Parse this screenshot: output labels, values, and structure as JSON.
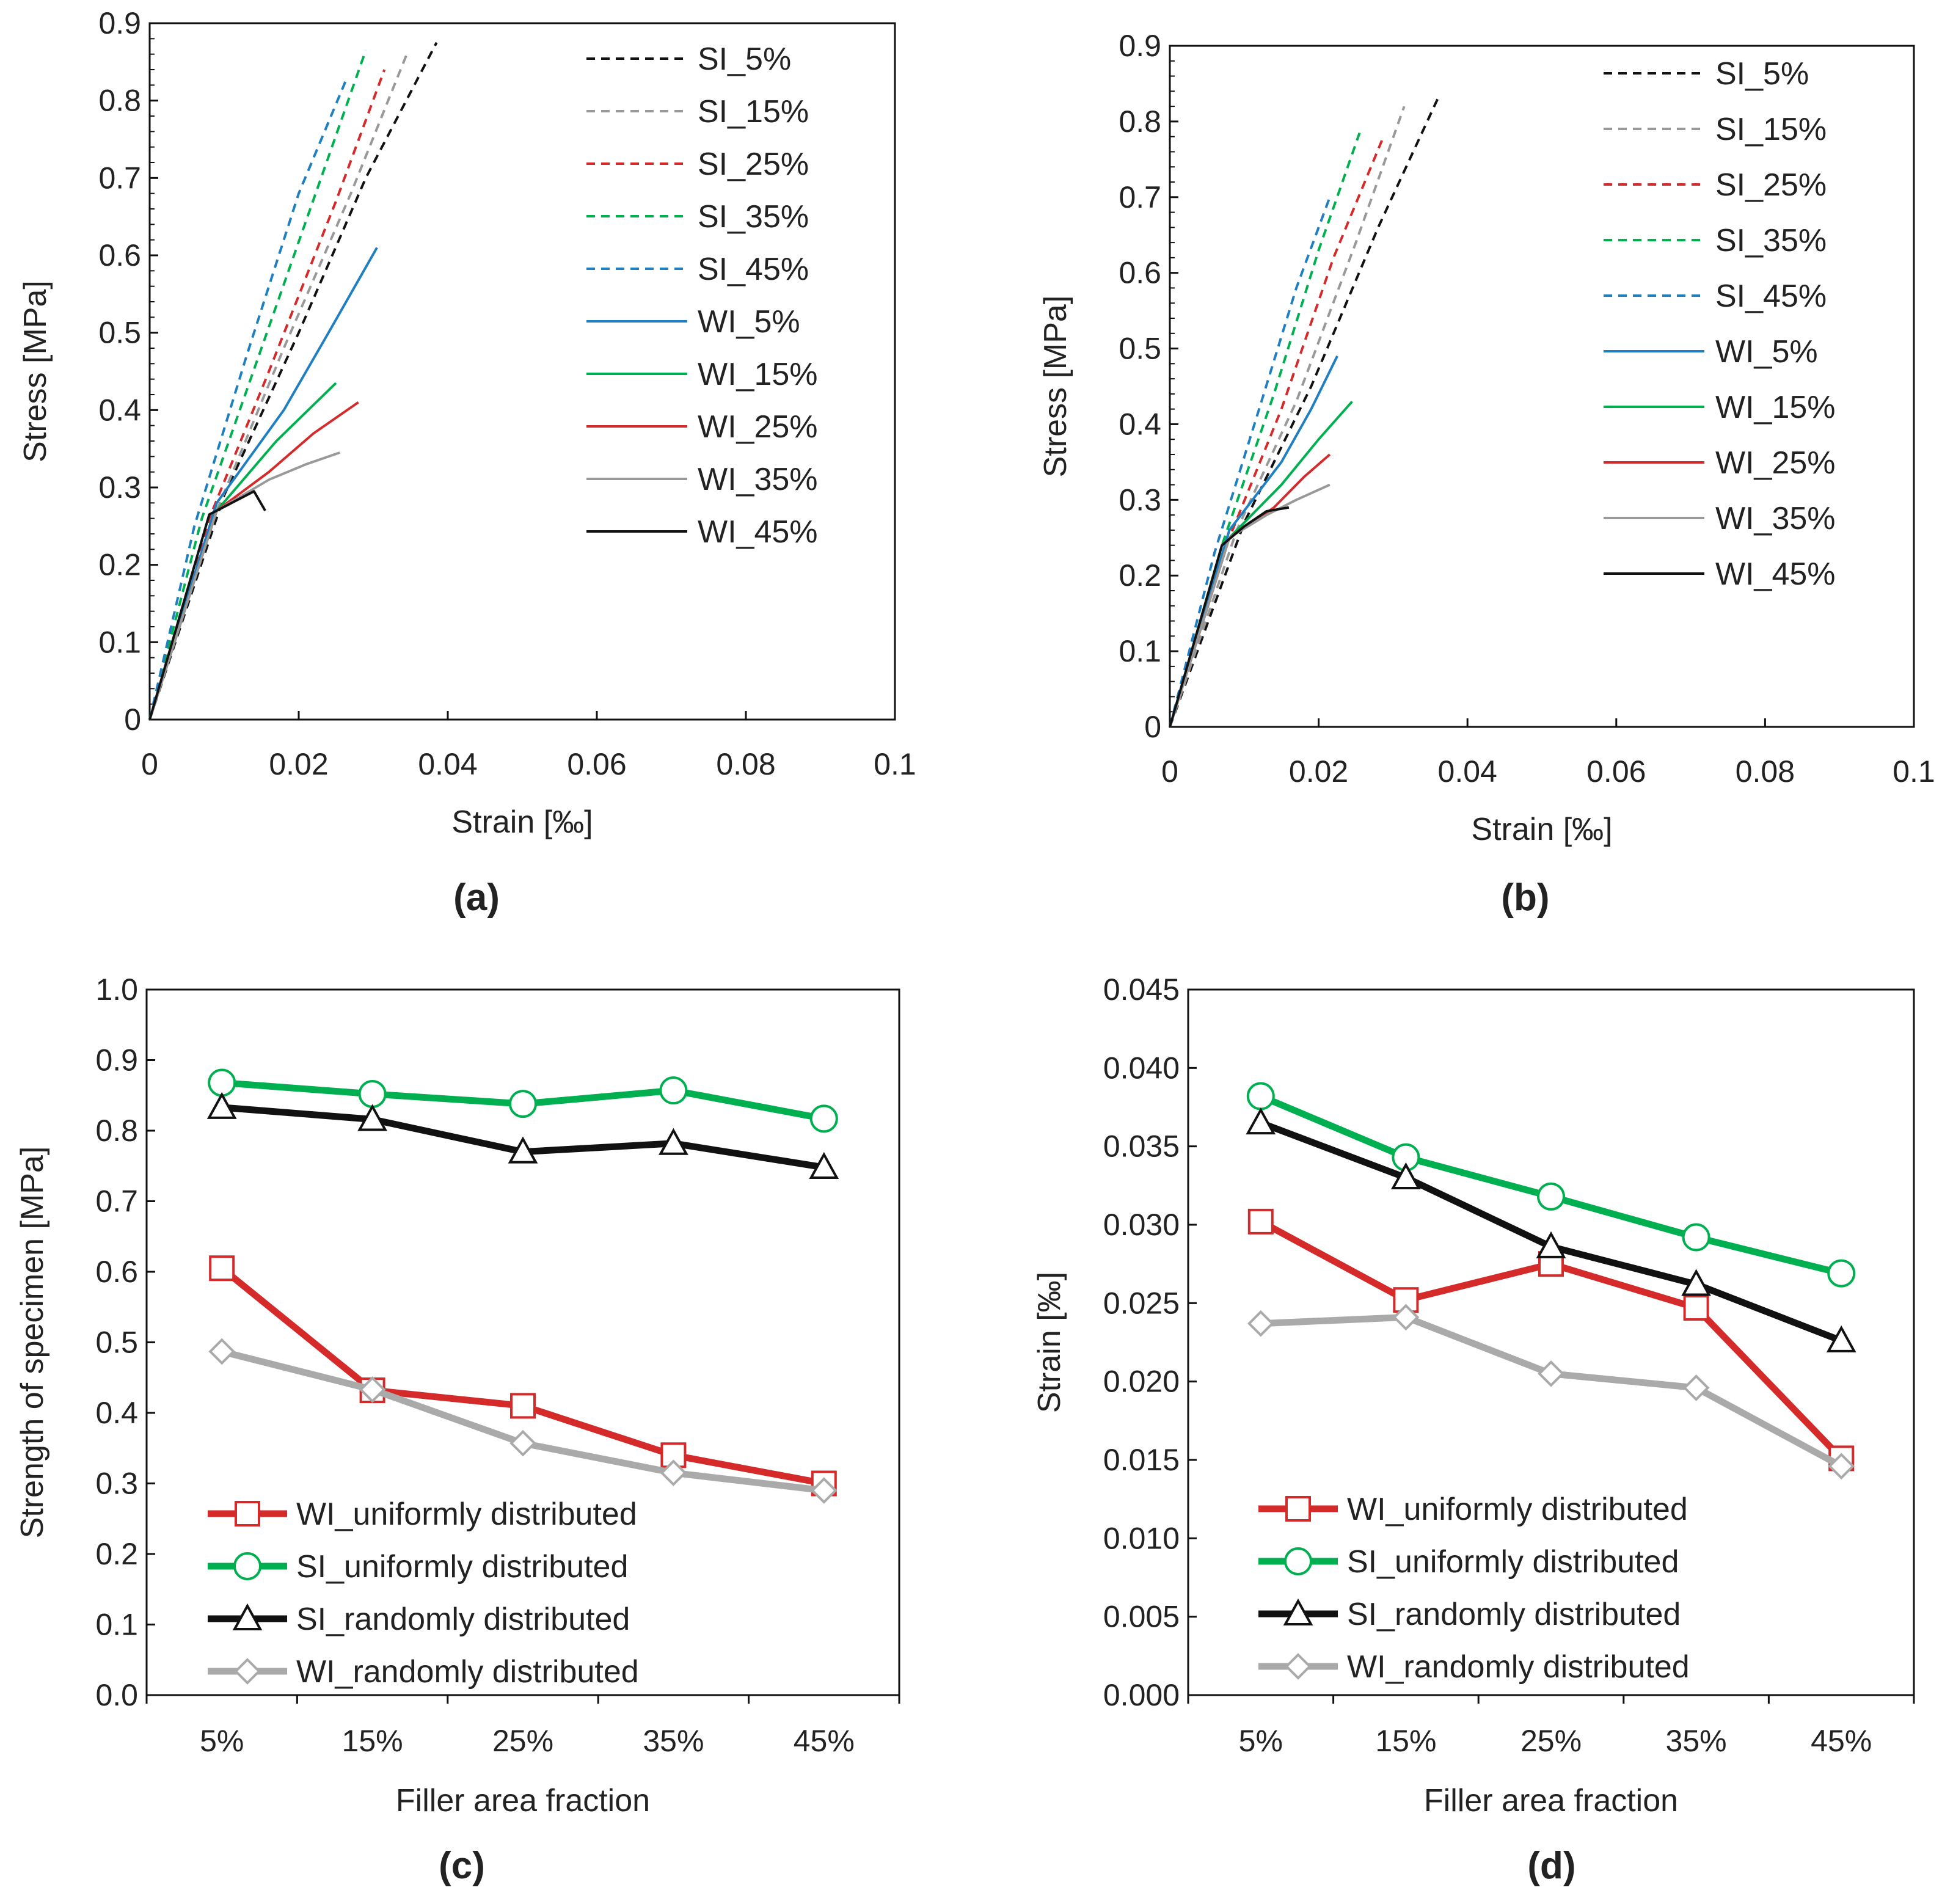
{
  "figure": {
    "panels": [
      "(a)",
      "(b)",
      "(c)",
      "(d)"
    ]
  },
  "chart_data": [
    {
      "id": "a",
      "type": "line",
      "panel_label": "(a)",
      "xlabel": "Strain [‰]",
      "ylabel": "Stress [MPa]",
      "xlim": [
        0,
        0.1
      ],
      "ylim": [
        0,
        0.9
      ],
      "xticks": [
        "0",
        "0.02",
        "0.04",
        "0.06",
        "0.08",
        "0.1"
      ],
      "yticks": [
        "0",
        "0.1",
        "0.2",
        "0.3",
        "0.4",
        "0.5",
        "0.6",
        "0.7",
        "0.8",
        "0.9"
      ],
      "legend_position": "top-right",
      "series": [
        {
          "name": "SI_5%",
          "color": "#111111",
          "dash": true,
          "points": [
            [
              0,
              0
            ],
            [
              0.01,
              0.29
            ],
            [
              0.02,
              0.5
            ],
            [
              0.029,
              0.7
            ],
            [
              0.0385,
              0.875
            ]
          ]
        },
        {
          "name": "SI_15%",
          "color": "#999999",
          "dash": true,
          "points": [
            [
              0,
              0
            ],
            [
              0.009,
              0.27
            ],
            [
              0.018,
              0.48
            ],
            [
              0.027,
              0.68
            ],
            [
              0.0345,
              0.86
            ]
          ]
        },
        {
          "name": "SI_25%",
          "color": "#d42a2a",
          "dash": true,
          "points": [
            [
              0,
              0
            ],
            [
              0.008,
              0.26
            ],
            [
              0.016,
              0.45
            ],
            [
              0.025,
              0.67
            ],
            [
              0.0315,
              0.84
            ]
          ]
        },
        {
          "name": "SI_35%",
          "color": "#00b050",
          "dash": true,
          "points": [
            [
              0,
              0
            ],
            [
              0.007,
              0.26
            ],
            [
              0.015,
              0.48
            ],
            [
              0.023,
              0.7
            ],
            [
              0.029,
              0.865
            ]
          ]
        },
        {
          "name": "SI_45%",
          "color": "#1f7fc0",
          "dash": true,
          "points": [
            [
              0,
              0
            ],
            [
              0.006,
              0.25
            ],
            [
              0.013,
              0.47
            ],
            [
              0.02,
              0.68
            ],
            [
              0.0265,
              0.83
            ]
          ]
        },
        {
          "name": "WI_5%",
          "color": "#1f7fc0",
          "dash": false,
          "points": [
            [
              0,
              0
            ],
            [
              0.009,
              0.28
            ],
            [
              0.018,
              0.4
            ],
            [
              0.024,
              0.5
            ],
            [
              0.0305,
              0.61
            ]
          ]
        },
        {
          "name": "WI_15%",
          "color": "#00b050",
          "dash": false,
          "points": [
            [
              0,
              0
            ],
            [
              0.009,
              0.27
            ],
            [
              0.017,
              0.36
            ],
            [
              0.025,
              0.435
            ]
          ]
        },
        {
          "name": "WI_25%",
          "color": "#d42a2a",
          "dash": false,
          "points": [
            [
              0,
              0
            ],
            [
              0.009,
              0.27
            ],
            [
              0.016,
              0.32
            ],
            [
              0.022,
              0.37
            ],
            [
              0.028,
              0.41
            ]
          ]
        },
        {
          "name": "WI_35%",
          "color": "#999999",
          "dash": false,
          "points": [
            [
              0,
              0
            ],
            [
              0.009,
              0.27
            ],
            [
              0.016,
              0.31
            ],
            [
              0.021,
              0.33
            ],
            [
              0.0255,
              0.345
            ]
          ]
        },
        {
          "name": "WI_45%",
          "color": "#111111",
          "dash": false,
          "points": [
            [
              0,
              0
            ],
            [
              0.008,
              0.265
            ],
            [
              0.011,
              0.28
            ],
            [
              0.014,
              0.295
            ],
            [
              0.0155,
              0.27
            ]
          ]
        }
      ]
    },
    {
      "id": "b",
      "type": "line",
      "panel_label": "(b)",
      "xlabel": "Strain [‰]",
      "ylabel": "Stress [MPa]",
      "xlim": [
        0,
        0.1
      ],
      "ylim": [
        0,
        0.9
      ],
      "xticks": [
        "0",
        "0.02",
        "0.04",
        "0.06",
        "0.08",
        "0.1"
      ],
      "yticks": [
        "0",
        "0.1",
        "0.2",
        "0.3",
        "0.4",
        "0.5",
        "0.6",
        "0.7",
        "0.8",
        "0.9"
      ],
      "legend_position": "top-right",
      "series": [
        {
          "name": "SI_5%",
          "color": "#111111",
          "dash": true,
          "points": [
            [
              0,
              0
            ],
            [
              0.01,
              0.27
            ],
            [
              0.019,
              0.45
            ],
            [
              0.028,
              0.66
            ],
            [
              0.036,
              0.83
            ]
          ]
        },
        {
          "name": "SI_15%",
          "color": "#999999",
          "dash": true,
          "points": [
            [
              0,
              0
            ],
            [
              0.009,
              0.26
            ],
            [
              0.017,
              0.43
            ],
            [
              0.025,
              0.64
            ],
            [
              0.0315,
              0.82
            ]
          ]
        },
        {
          "name": "SI_25%",
          "color": "#d42a2a",
          "dash": true,
          "points": [
            [
              0,
              0
            ],
            [
              0.008,
              0.25
            ],
            [
              0.015,
              0.42
            ],
            [
              0.022,
              0.62
            ],
            [
              0.0285,
              0.775
            ]
          ]
        },
        {
          "name": "SI_35%",
          "color": "#00b050",
          "dash": true,
          "points": [
            [
              0,
              0
            ],
            [
              0.007,
              0.24
            ],
            [
              0.014,
              0.44
            ],
            [
              0.02,
              0.63
            ],
            [
              0.0255,
              0.785
            ]
          ]
        },
        {
          "name": "SI_45%",
          "color": "#1f7fc0",
          "dash": true,
          "points": [
            [
              0,
              0
            ],
            [
              0.006,
              0.23
            ],
            [
              0.012,
              0.42
            ],
            [
              0.017,
              0.58
            ],
            [
              0.0215,
              0.7
            ]
          ]
        },
        {
          "name": "WI_5%",
          "color": "#1f7fc0",
          "dash": false,
          "points": [
            [
              0,
              0
            ],
            [
              0.008,
              0.26
            ],
            [
              0.015,
              0.35
            ],
            [
              0.019,
              0.42
            ],
            [
              0.0225,
              0.49
            ]
          ]
        },
        {
          "name": "WI_15%",
          "color": "#00b050",
          "dash": false,
          "points": [
            [
              0,
              0
            ],
            [
              0.008,
              0.25
            ],
            [
              0.015,
              0.32
            ],
            [
              0.02,
              0.38
            ],
            [
              0.0245,
              0.43
            ]
          ]
        },
        {
          "name": "WI_25%",
          "color": "#d42a2a",
          "dash": false,
          "points": [
            [
              0,
              0
            ],
            [
              0.008,
              0.25
            ],
            [
              0.014,
              0.29
            ],
            [
              0.018,
              0.33
            ],
            [
              0.0215,
              0.36
            ]
          ]
        },
        {
          "name": "WI_35%",
          "color": "#999999",
          "dash": false,
          "points": [
            [
              0,
              0
            ],
            [
              0.008,
              0.25
            ],
            [
              0.013,
              0.28
            ],
            [
              0.017,
              0.3
            ],
            [
              0.0215,
              0.32
            ]
          ]
        },
        {
          "name": "WI_45%",
          "color": "#111111",
          "dash": false,
          "points": [
            [
              0,
              0
            ],
            [
              0.007,
              0.24
            ],
            [
              0.01,
              0.265
            ],
            [
              0.013,
              0.285
            ],
            [
              0.016,
              0.29
            ]
          ]
        }
      ]
    },
    {
      "id": "c",
      "type": "line",
      "panel_label": "(c)",
      "xlabel": "Filler area fraction",
      "ylabel": "Strength of specimen [MPa]",
      "categories": [
        "5%",
        "15%",
        "25%",
        "35%",
        "45%"
      ],
      "ylim": [
        0,
        1.0
      ],
      "yticks": [
        "0.0",
        "0.1",
        "0.2",
        "0.3",
        "0.4",
        "0.5",
        "0.6",
        "0.7",
        "0.8",
        "0.9",
        "1.0"
      ],
      "legend_position": "bottom-left",
      "series": [
        {
          "name": "WI_uniformly distributed",
          "color": "#d42a2a",
          "marker": "square",
          "values": [
            0.605,
            0.432,
            0.41,
            0.34,
            0.3
          ]
        },
        {
          "name": "SI_uniformly distributed",
          "color": "#00b050",
          "marker": "circle",
          "values": [
            0.868,
            0.852,
            0.838,
            0.857,
            0.817
          ]
        },
        {
          "name": "SI_randomly distributed",
          "color": "#111111",
          "marker": "triangle",
          "values": [
            0.833,
            0.816,
            0.77,
            0.782,
            0.748
          ]
        },
        {
          "name": "WI_randomly distributed",
          "color": "#aaaaaa",
          "marker": "diamond",
          "values": [
            0.487,
            0.433,
            0.357,
            0.315,
            0.29
          ]
        }
      ]
    },
    {
      "id": "d",
      "type": "line",
      "panel_label": "(d)",
      "xlabel": "Filler area fraction",
      "ylabel": "Strain [‰]",
      "categories": [
        "5%",
        "15%",
        "25%",
        "35%",
        "45%"
      ],
      "ylim": [
        0,
        0.045
      ],
      "yticks": [
        "0.000",
        "0.005",
        "0.010",
        "0.015",
        "0.020",
        "0.025",
        "0.030",
        "0.035",
        "0.040",
        "0.045"
      ],
      "legend_position": "bottom-left",
      "series": [
        {
          "name": "WI_uniformly distributed",
          "color": "#d42a2a",
          "marker": "square",
          "values": [
            0.0302,
            0.0252,
            0.0275,
            0.0247,
            0.0151
          ]
        },
        {
          "name": "SI_uniformly distributed",
          "color": "#00b050",
          "marker": "circle",
          "values": [
            0.0382,
            0.0343,
            0.0318,
            0.0292,
            0.0269
          ]
        },
        {
          "name": "SI_randomly distributed",
          "color": "#111111",
          "marker": "triangle",
          "values": [
            0.0365,
            0.033,
            0.0286,
            0.0262,
            0.0226
          ]
        },
        {
          "name": "WI_randomly distributed",
          "color": "#aaaaaa",
          "marker": "diamond",
          "values": [
            0.0237,
            0.0241,
            0.0205,
            0.0196,
            0.0146
          ]
        }
      ]
    }
  ]
}
